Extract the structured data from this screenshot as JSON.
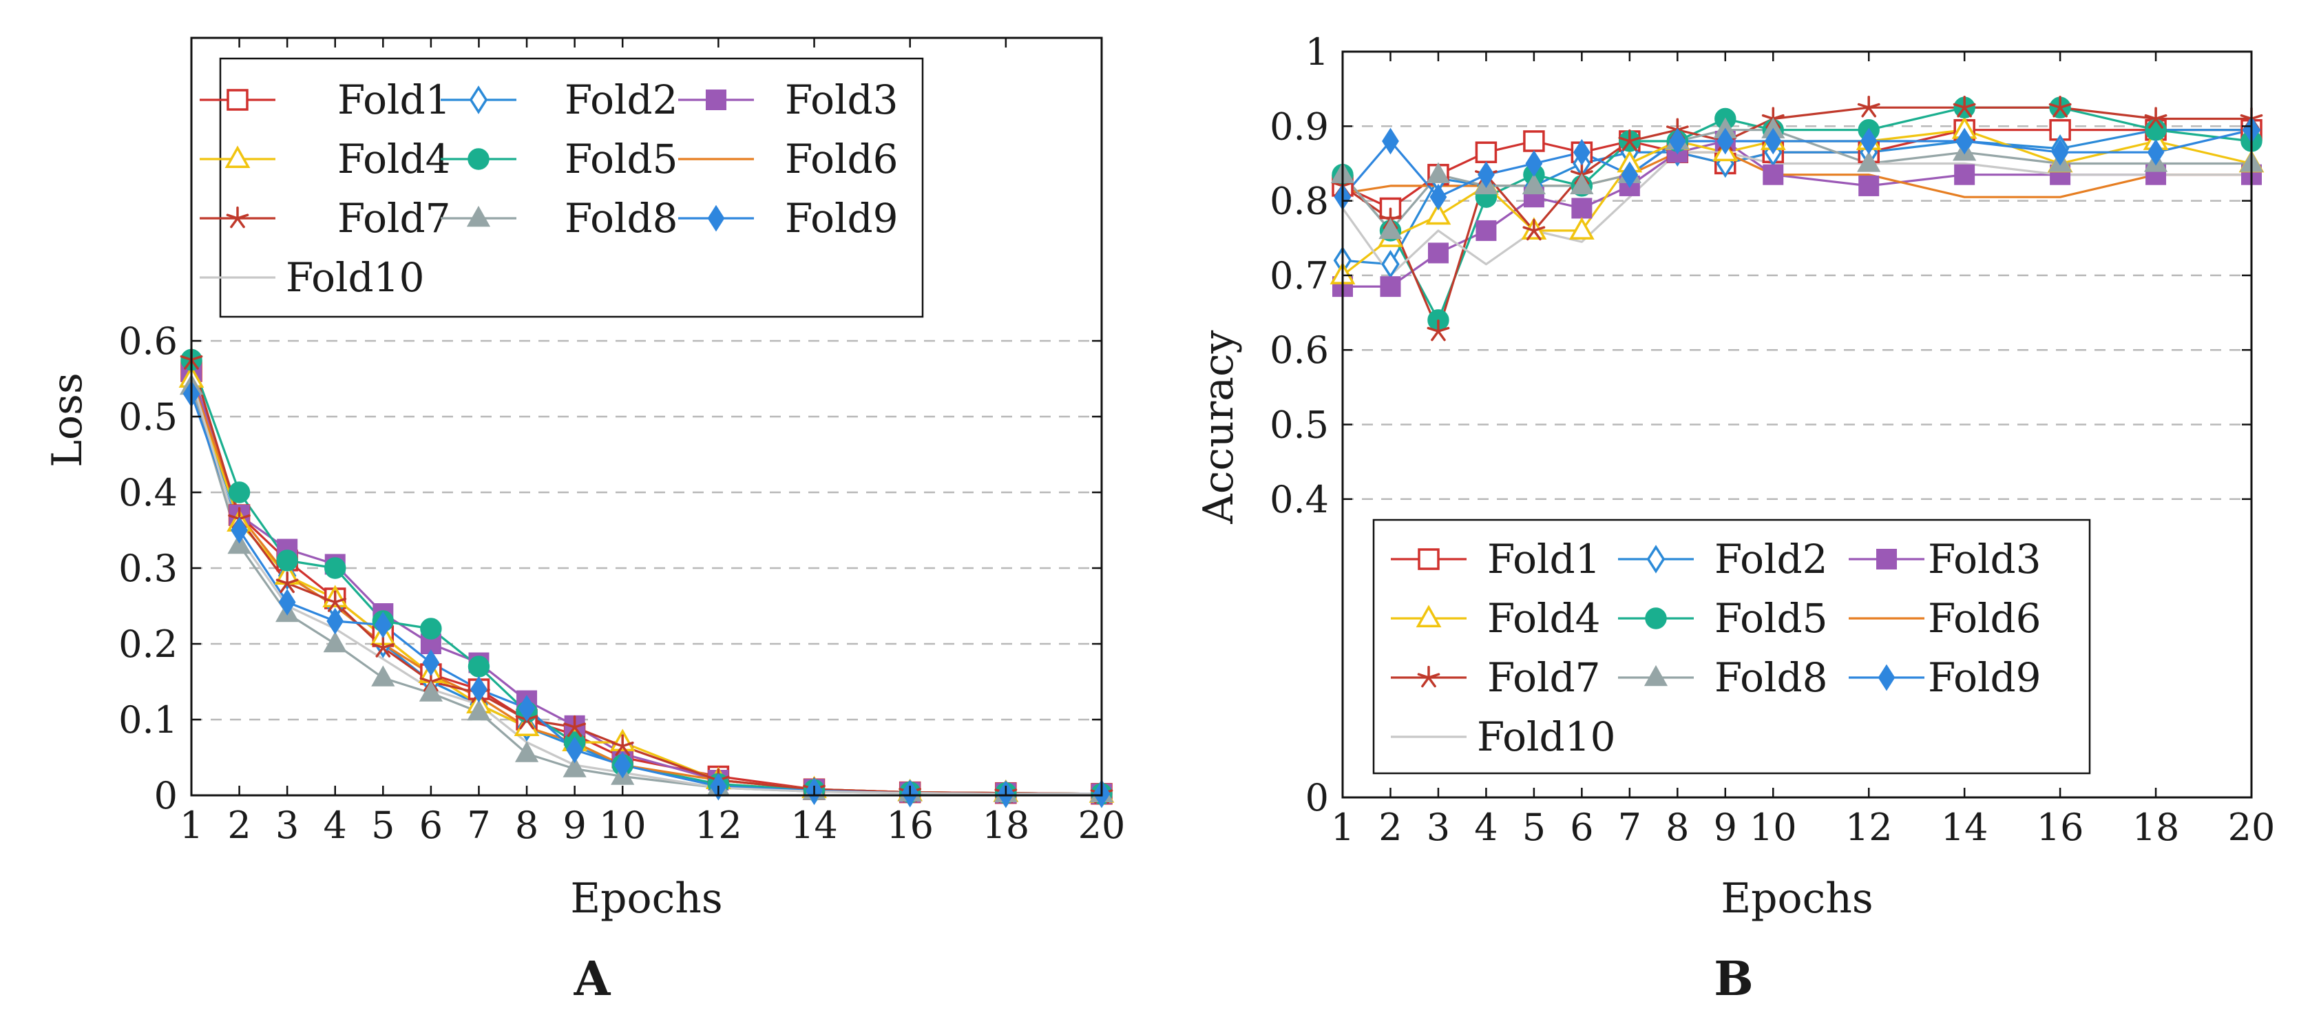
{
  "chart_data": [
    {
      "type": "line",
      "panel_label": "A",
      "xlabel": "Epochs",
      "ylabel": "Loss",
      "x": [
        1,
        2,
        3,
        4,
        5,
        6,
        7,
        8,
        9,
        10,
        12,
        14,
        16,
        18,
        20
      ],
      "xlim": [
        1,
        20
      ],
      "ylim": [
        0,
        1
      ],
      "x_ticks": [
        "1",
        "2",
        "3",
        "4",
        "5",
        "6",
        "7",
        "8",
        "9",
        "10",
        "12",
        "14",
        "16",
        "18",
        "20"
      ],
      "y_ticks": [
        {
          "value": 0,
          "label": "0"
        },
        {
          "value": 0.1,
          "label": "0.1"
        },
        {
          "value": 0.2,
          "label": "0.2"
        },
        {
          "value": 0.3,
          "label": "0.3"
        },
        {
          "value": 0.4,
          "label": "0.4"
        },
        {
          "value": 0.5,
          "label": "0.5"
        },
        {
          "value": 0.6,
          "label": "0.6"
        }
      ],
      "grid": "horizontal dashed",
      "legend_position": "top",
      "series": [
        {
          "name": "Fold1",
          "color": "#d0312d",
          "marker": "square-open",
          "values": [
            0.56,
            0.37,
            0.31,
            0.26,
            0.21,
            0.16,
            0.14,
            0.1,
            0.08,
            0.05,
            0.025,
            0.008,
            0.004,
            0.003,
            0.002
          ]
        },
        {
          "name": "Fold2",
          "color": "#2b8ad8",
          "marker": "diamond-open",
          "values": [
            0.54,
            0.36,
            0.29,
            0.25,
            0.2,
            0.15,
            0.12,
            0.09,
            0.065,
            0.04,
            0.012,
            0.006,
            0.003,
            0.002,
            0.002
          ]
        },
        {
          "name": "Fold3",
          "color": "#9b59b6",
          "marker": "square",
          "values": [
            0.56,
            0.37,
            0.325,
            0.305,
            0.24,
            0.2,
            0.175,
            0.125,
            0.092,
            0.055,
            0.02,
            0.008,
            0.004,
            0.003,
            0.002
          ]
        },
        {
          "name": "Fold4",
          "color": "#f1c40f",
          "marker": "triangle-open",
          "values": [
            0.55,
            0.36,
            0.29,
            0.26,
            0.21,
            0.16,
            0.12,
            0.09,
            0.07,
            0.07,
            0.02,
            0.008,
            0.004,
            0.003,
            0.002
          ]
        },
        {
          "name": "Fold5",
          "color": "#1aaf8f",
          "marker": "circle",
          "values": [
            0.575,
            0.4,
            0.31,
            0.3,
            0.23,
            0.22,
            0.17,
            0.11,
            0.07,
            0.04,
            0.015,
            0.007,
            0.004,
            0.003,
            0.002
          ]
        },
        {
          "name": "Fold6",
          "color": "#e67e22",
          "marker": "none",
          "values": [
            0.55,
            0.37,
            0.29,
            0.25,
            0.2,
            0.16,
            0.13,
            0.09,
            0.07,
            0.04,
            0.02,
            0.008,
            0.004,
            0.003,
            0.002
          ]
        },
        {
          "name": "Fold7",
          "color": "#c0392b",
          "marker": "star",
          "values": [
            0.575,
            0.365,
            0.28,
            0.255,
            0.195,
            0.15,
            0.135,
            0.1,
            0.09,
            0.065,
            0.02,
            0.008,
            0.004,
            0.003,
            0.002
          ]
        },
        {
          "name": "Fold8",
          "color": "#95a5a6",
          "marker": "triangle",
          "values": [
            0.54,
            0.33,
            0.24,
            0.2,
            0.155,
            0.135,
            0.11,
            0.055,
            0.035,
            0.025,
            0.01,
            0.005,
            0.003,
            0.002,
            0.002
          ]
        },
        {
          "name": "Fold9",
          "color": "#2e86de",
          "marker": "diamond",
          "values": [
            0.53,
            0.35,
            0.255,
            0.23,
            0.225,
            0.175,
            0.14,
            0.115,
            0.06,
            0.04,
            0.012,
            0.006,
            0.003,
            0.002,
            0.002
          ]
        },
        {
          "name": "Fold10",
          "color": "#c8c8c8",
          "marker": "none",
          "values": [
            0.55,
            0.34,
            0.25,
            0.22,
            0.18,
            0.14,
            0.12,
            0.07,
            0.04,
            0.03,
            0.01,
            0.005,
            0.003,
            0.002,
            0.002
          ]
        }
      ]
    },
    {
      "type": "line",
      "panel_label": "B",
      "xlabel": "Epochs",
      "ylabel": "Accuracy",
      "x": [
        1,
        2,
        3,
        4,
        5,
        6,
        7,
        8,
        9,
        10,
        12,
        14,
        16,
        18,
        20
      ],
      "xlim": [
        1,
        20
      ],
      "ylim": [
        0,
        1
      ],
      "x_ticks": [
        "1",
        "2",
        "3",
        "4",
        "5",
        "6",
        "7",
        "8",
        "9",
        "10",
        "12",
        "14",
        "16",
        "18",
        "20"
      ],
      "y_ticks": [
        {
          "value": 0,
          "label": "0"
        },
        {
          "value": 0.4,
          "label": "0.4"
        },
        {
          "value": 0.5,
          "label": "0.5"
        },
        {
          "value": 0.6,
          "label": "0.6"
        },
        {
          "value": 0.7,
          "label": "0.7"
        },
        {
          "value": 0.8,
          "label": "0.8"
        },
        {
          "value": 0.9,
          "label": "0.9"
        },
        {
          "value": 1,
          "label": "1"
        }
      ],
      "grid": "horizontal dashed",
      "legend_position": "bottom-left",
      "series": [
        {
          "name": "Fold1",
          "color": "#d0312d",
          "marker": "square-open",
          "values": [
            0.82,
            0.79,
            0.835,
            0.865,
            0.88,
            0.865,
            0.88,
            0.865,
            0.85,
            0.865,
            0.865,
            0.895,
            0.895,
            0.895,
            0.895
          ]
        },
        {
          "name": "Fold2",
          "color": "#2b8ad8",
          "marker": "diamond-open",
          "values": [
            0.72,
            0.715,
            0.83,
            0.82,
            0.82,
            0.85,
            0.865,
            0.865,
            0.85,
            0.865,
            0.865,
            0.88,
            0.87,
            0.895,
            0.895
          ]
        },
        {
          "name": "Fold3",
          "color": "#9b59b6",
          "marker": "square",
          "values": [
            0.685,
            0.685,
            0.73,
            0.76,
            0.805,
            0.79,
            0.82,
            0.865,
            0.88,
            0.835,
            0.82,
            0.835,
            0.835,
            0.835,
            0.835
          ]
        },
        {
          "name": "Fold4",
          "color": "#f1c40f",
          "marker": "triangle-open",
          "values": [
            0.7,
            0.75,
            0.78,
            0.82,
            0.76,
            0.76,
            0.85,
            0.88,
            0.865,
            0.88,
            0.88,
            0.895,
            0.85,
            0.88,
            0.85
          ]
        },
        {
          "name": "Fold5",
          "color": "#1aaf8f",
          "marker": "circle",
          "values": [
            0.835,
            0.76,
            0.64,
            0.805,
            0.835,
            0.82,
            0.88,
            0.88,
            0.91,
            0.895,
            0.895,
            0.925,
            0.925,
            0.895,
            0.88
          ]
        },
        {
          "name": "Fold6",
          "color": "#e67e22",
          "marker": "none",
          "values": [
            0.81,
            0.82,
            0.82,
            0.82,
            0.82,
            0.82,
            0.835,
            0.865,
            0.865,
            0.835,
            0.835,
            0.805,
            0.805,
            0.835,
            0.835
          ]
        },
        {
          "name": "Fold7",
          "color": "#c0392b",
          "marker": "star",
          "values": [
            0.82,
            0.775,
            0.625,
            0.835,
            0.76,
            0.835,
            0.88,
            0.895,
            0.88,
            0.91,
            0.925,
            0.925,
            0.925,
            0.91,
            0.91
          ]
        },
        {
          "name": "Fold8",
          "color": "#95a5a6",
          "marker": "triangle",
          "values": [
            0.835,
            0.76,
            0.835,
            0.82,
            0.82,
            0.82,
            0.835,
            0.88,
            0.895,
            0.895,
            0.85,
            0.865,
            0.85,
            0.85,
            0.85
          ]
        },
        {
          "name": "Fold9",
          "color": "#2e86de",
          "marker": "diamond",
          "values": [
            0.805,
            0.88,
            0.805,
            0.835,
            0.85,
            0.865,
            0.835,
            0.88,
            0.88,
            0.88,
            0.88,
            0.88,
            0.865,
            0.865,
            0.895
          ]
        },
        {
          "name": "Fold10",
          "color": "#c8c8c8",
          "marker": "none",
          "values": [
            0.79,
            0.7,
            0.76,
            0.715,
            0.76,
            0.745,
            0.805,
            0.865,
            0.865,
            0.85,
            0.85,
            0.85,
            0.835,
            0.835,
            0.835
          ]
        }
      ]
    }
  ]
}
